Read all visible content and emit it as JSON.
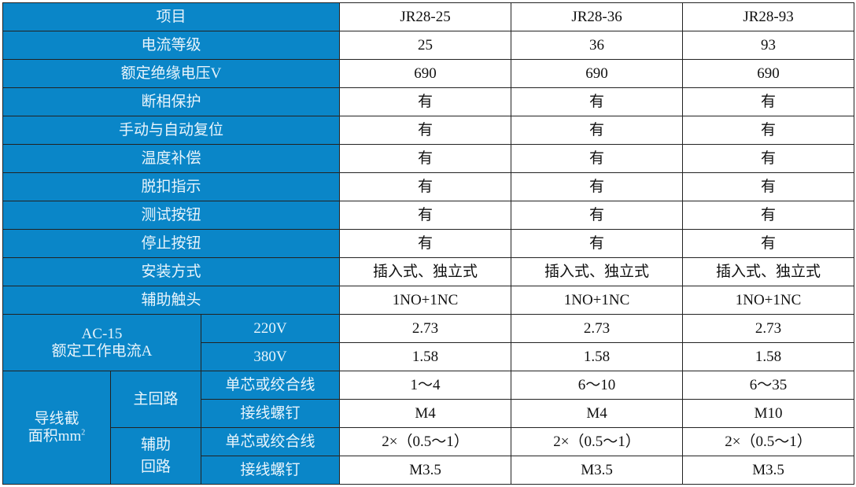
{
  "colors": {
    "header_bg": "#0a86c8",
    "header_text": "#e8f4fb"
  },
  "header": {
    "item": "项目",
    "models": [
      "JR28-25",
      "JR28-36",
      "JR28-93"
    ]
  },
  "rows": [
    {
      "label": "电流等级",
      "values": [
        "25",
        "36",
        "93"
      ]
    },
    {
      "label": "额定绝缘电压V",
      "values": [
        "690",
        "690",
        "690"
      ]
    },
    {
      "label": "断相保护",
      "values": [
        "有",
        "有",
        "有"
      ]
    },
    {
      "label": "手动与自动复位",
      "values": [
        "有",
        "有",
        "有"
      ]
    },
    {
      "label": "温度补偿",
      "values": [
        "有",
        "有",
        "有"
      ]
    },
    {
      "label": "脱扣指示",
      "values": [
        "有",
        "有",
        "有"
      ]
    },
    {
      "label": "测试按钮",
      "values": [
        "有",
        "有",
        "有"
      ]
    },
    {
      "label": "停止按钮",
      "values": [
        "有",
        "有",
        "有"
      ]
    },
    {
      "label": "安装方式",
      "values": [
        "插入式、独立式",
        "插入式、独立式",
        "插入式、独立式"
      ]
    },
    {
      "label": "辅助触头",
      "values": [
        "1NO+1NC",
        "1NO+1NC",
        "1NO+1NC"
      ]
    }
  ],
  "ac15": {
    "label_line1": "AC-15",
    "label_line2": "额定工作电流A",
    "rows": [
      {
        "label": "220V",
        "values": [
          "2.73",
          "2.73",
          "2.73"
        ]
      },
      {
        "label": "380V",
        "values": [
          "1.58",
          "1.58",
          "1.58"
        ]
      }
    ]
  },
  "wire": {
    "label_line1": "导线截",
    "label_line2": "面积mm",
    "label_sup": "2",
    "main": {
      "label": "主回路",
      "rows": [
        {
          "label": "单芯或绞合线",
          "values": [
            "1～4",
            "6～10",
            "6～35"
          ]
        },
        {
          "label": "接线螺钉",
          "values": [
            "M4",
            "M4",
            "M10"
          ]
        }
      ]
    },
    "aux": {
      "label_line1": "辅助",
      "label_line2": "回路",
      "rows": [
        {
          "label": "单芯或绞合线",
          "values": [
            "2×（0.5～1）",
            "2×（0.5～1）",
            "2×（0.5～1）"
          ]
        },
        {
          "label": "接线螺钉",
          "values": [
            "M3.5",
            "M3.5",
            "M3.5"
          ]
        }
      ]
    }
  }
}
